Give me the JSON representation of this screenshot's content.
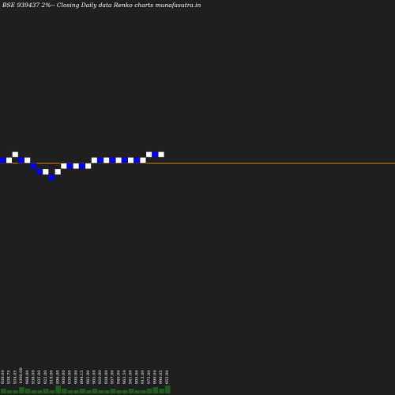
{
  "chart_data": {
    "type": "renko",
    "title": "BSE 939437 2%-- Closing Daily data Renko charts munafasutra.in",
    "colors": {
      "background": "#1f1f1f",
      "up_brick": "#ffffff",
      "down_brick": "#0000ff",
      "reference_line": "#cc7a00",
      "volume": "#1e5c1e"
    },
    "reference_level": 970.0,
    "brick_size": 19.0,
    "bricks": [
      {
        "dir": "down",
        "close": 970.0
      },
      {
        "dir": "up",
        "close": 989.0
      },
      {
        "dir": "up",
        "close": 1008.0
      },
      {
        "dir": "down",
        "close": 970.0
      },
      {
        "dir": "up",
        "close": 989.0
      },
      {
        "dir": "down",
        "close": 951.0
      },
      {
        "dir": "down",
        "close": 932.0
      },
      {
        "dir": "up",
        "close": 951.0
      },
      {
        "dir": "down",
        "close": 913.0
      },
      {
        "dir": "up",
        "close": 951.0
      },
      {
        "dir": "up",
        "close": 970.0
      },
      {
        "dir": "down",
        "close": 951.0
      },
      {
        "dir": "up",
        "close": 970.0
      },
      {
        "dir": "down",
        "close": 951.0
      },
      {
        "dir": "up",
        "close": 970.0
      },
      {
        "dir": "up",
        "close": 989.0
      },
      {
        "dir": "down",
        "close": 970.0
      },
      {
        "dir": "up",
        "close": 989.0
      },
      {
        "dir": "down",
        "close": 970.0
      },
      {
        "dir": "up",
        "close": 989.0
      },
      {
        "dir": "down",
        "close": 970.0
      },
      {
        "dir": "up",
        "close": 989.0
      },
      {
        "dir": "down",
        "close": 970.0
      },
      {
        "dir": "up",
        "close": 989.0
      },
      {
        "dir": "up",
        "close": 1008.0
      },
      {
        "dir": "down",
        "close": 989.0
      },
      {
        "dir": "up",
        "close": 1008.0
      }
    ],
    "x_tick_labels": [
      "939.00",
      "938.75",
      "934.05",
      "1000.00",
      "968.00",
      "938.00",
      "935.00",
      "925.00",
      "919.00",
      "896.00",
      "900.00",
      "930.00",
      "900.00",
      "894.15",
      "962.00",
      "905.00",
      "920.00",
      "938.00",
      "957.00",
      "940.00",
      "963.50",
      "941.00",
      "905.00",
      "913.00",
      "975.00",
      "990.00",
      "990.05",
      "955.00"
    ],
    "volume": [
      3,
      2,
      2,
      4,
      3,
      2,
      2,
      3,
      2,
      5,
      3,
      2,
      2,
      3,
      2,
      3,
      2,
      2,
      3,
      2,
      2,
      3,
      2,
      2,
      3,
      4,
      3,
      5
    ]
  }
}
